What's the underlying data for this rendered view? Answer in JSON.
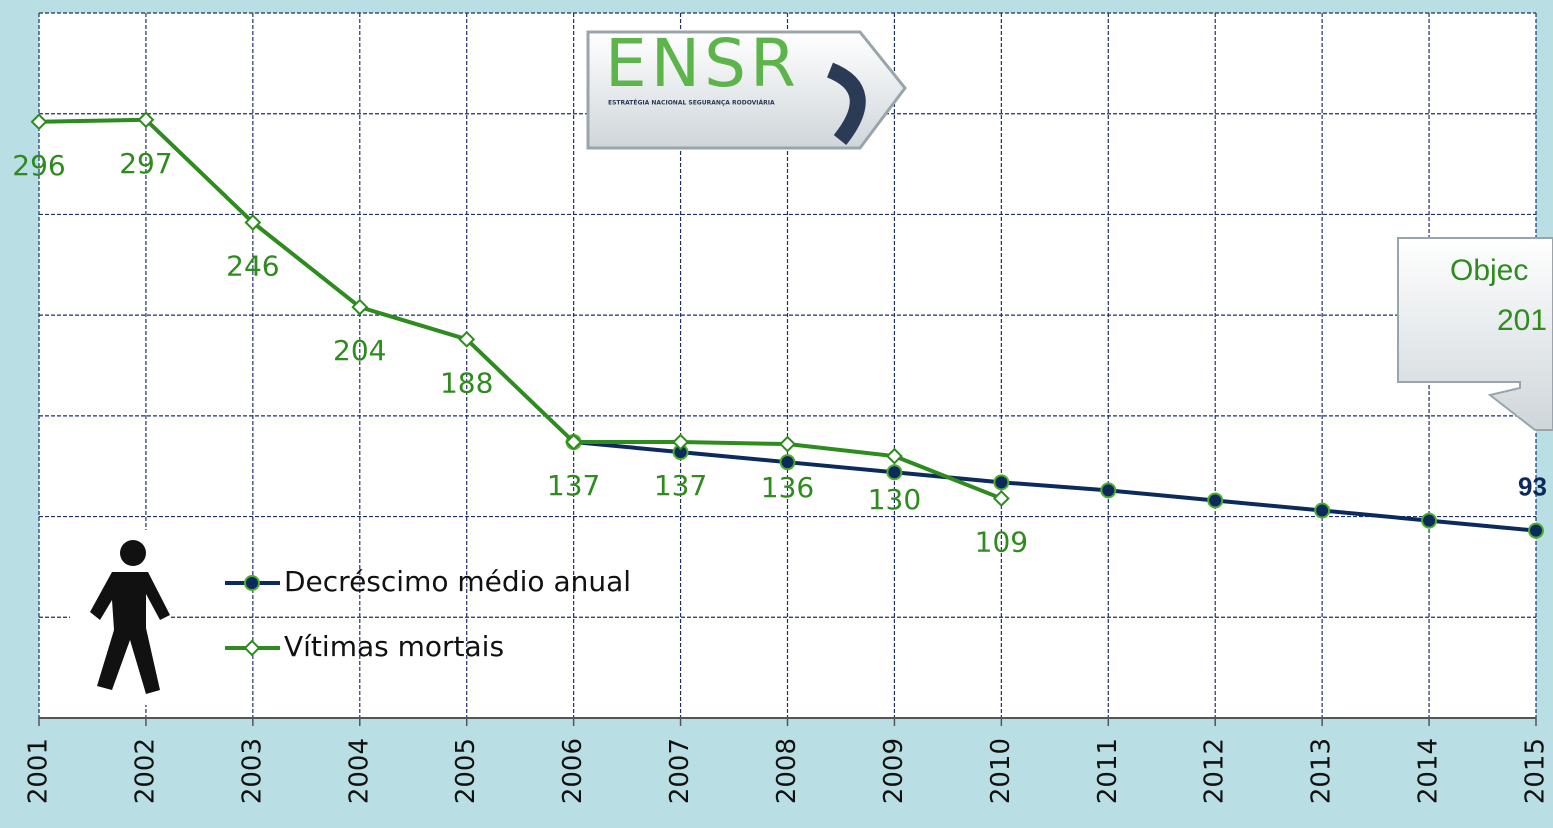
{
  "chart_data": {
    "type": "line",
    "categories": [
      "2001",
      "2002",
      "2003",
      "2004",
      "2005",
      "2006",
      "2007",
      "2008",
      "2009",
      "2010",
      "2011",
      "2012",
      "2013",
      "2014",
      "2015"
    ],
    "series": [
      {
        "name": "Decréscimo médio anual",
        "color": "#0d2a5c",
        "marker": "circle",
        "values": [
          null,
          null,
          null,
          null,
          null,
          137,
          132,
          127,
          122,
          117,
          113,
          108,
          103,
          98,
          93
        ],
        "labeled": [
          14
        ]
      },
      {
        "name": "Vítimas mortais",
        "color": "#2e8b1e",
        "marker": "diamond",
        "values": [
          296,
          297,
          246,
          204,
          188,
          137,
          137,
          136,
          130,
          109,
          null,
          null,
          null,
          null,
          null
        ],
        "labeled": [
          0,
          1,
          2,
          3,
          4,
          5,
          6,
          7,
          8,
          9
        ]
      }
    ],
    "ylim": [
      0,
      350
    ],
    "yticks": [
      0,
      50,
      100,
      150,
      200,
      250,
      300,
      350
    ],
    "grid": true,
    "legend": "lower-left",
    "annotation": [
      "Objec",
      "201"
    ],
    "logo": {
      "title": "ENSR",
      "subtitle": "ESTRATÉGIA NACIONAL SEGURANÇA RODOVIÁRIA"
    }
  }
}
